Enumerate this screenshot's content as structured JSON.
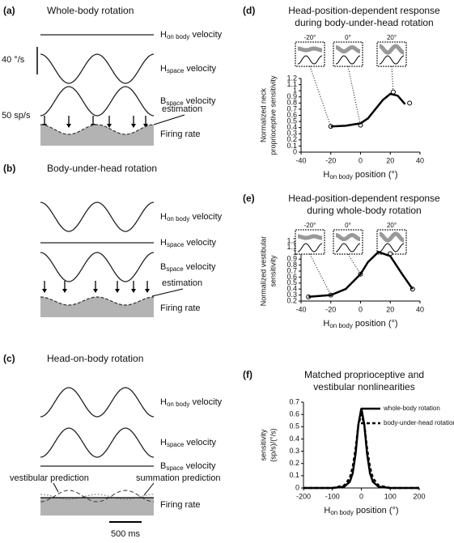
{
  "figure": {
    "panels": [
      {
        "letter": "(a)",
        "title": "Whole-body rotation",
        "traces": [
          {
            "main": "H",
            "sub": "on body",
            "rest": " velocity"
          },
          {
            "main": "H",
            "sub": "space",
            "rest": " velocity"
          },
          {
            "main": "B",
            "sub": "space",
            "rest": " velocity"
          }
        ],
        "scales": [
          "40 °/s",
          "50 sp/s"
        ],
        "annotations": [
          "estimation"
        ],
        "firing": "Firing rate"
      },
      {
        "letter": "(b)",
        "title": "Body-under-head rotation",
        "traces": [
          {
            "main": "H",
            "sub": "on body",
            "rest": " velocity"
          },
          {
            "main": "H",
            "sub": "space",
            "rest": " velocity"
          },
          {
            "main": "B",
            "sub": "space",
            "rest": " velocity"
          }
        ],
        "annotations": [
          "estimation"
        ],
        "firing": "Firing rate"
      },
      {
        "letter": "(c)",
        "title": "Head-on-body rotation",
        "traces": [
          {
            "main": "H",
            "sub": "on body",
            "rest": " velocity"
          },
          {
            "main": "H",
            "sub": "space",
            "rest": " velocity"
          },
          {
            "main": "B",
            "sub": "space",
            "rest": " velocity"
          }
        ],
        "annotations": [
          "vestibular prediction",
          "summation prediction"
        ],
        "firing": "Firing rate",
        "time_scale": "500 ms"
      }
    ]
  },
  "chart_data": [
    {
      "type": "line",
      "letter": "(d)",
      "title": [
        "Head-position-dependent response",
        "during body-under-head rotation"
      ],
      "ylabel": [
        "Normalized neck",
        "proprioceptive sensitivity"
      ],
      "xlabel": {
        "main": "H",
        "sub": "on body",
        "rest": " position (°)"
      },
      "xlim": [
        -40,
        40
      ],
      "xticks": [
        -40,
        -20,
        0,
        20,
        40
      ],
      "ylim": [
        0,
        1.2
      ],
      "yticks": [
        0,
        0.1,
        0.2,
        0.3,
        0.4,
        0.5,
        0.6,
        0.7,
        0.8,
        0.9,
        1,
        1.1,
        1.2
      ],
      "insets": [
        "-20°",
        "0°",
        "20°"
      ],
      "series": [
        {
          "type": "scatter",
          "color": "#000000",
          "x": [
            -20,
            0,
            22,
            33
          ],
          "values": [
            0.42,
            0.44,
            0.98,
            0.8
          ]
        },
        {
          "type": "line",
          "color": "#000000",
          "x": [
            -20,
            -10,
            0,
            5,
            10,
            15,
            20,
            25,
            30
          ],
          "values": [
            0.42,
            0.43,
            0.47,
            0.55,
            0.7,
            0.85,
            0.95,
            0.92,
            0.78
          ]
        }
      ]
    },
    {
      "type": "line",
      "letter": "(e)",
      "title": [
        "Head-position-dependent response",
        "during whole-body rotation"
      ],
      "ylabel": [
        "Normalized vestibular",
        "sensitivity"
      ],
      "xlabel": {
        "main": "H",
        "sub": "on body",
        "rest": " position (°)"
      },
      "xlim": [
        -40,
        40
      ],
      "xticks": [
        -40,
        -20,
        0,
        20,
        40
      ],
      "ylim": [
        0.2,
        1.2
      ],
      "yticks": [
        0.2,
        0.3,
        0.4,
        0.5,
        0.6,
        0.7,
        0.8,
        0.9,
        1,
        1.1,
        1.2
      ],
      "insets": [
        "-20°",
        "0°",
        "20°"
      ],
      "series": [
        {
          "type": "scatter",
          "color": "#000000",
          "x": [
            -20,
            0,
            20,
            -35,
            35
          ],
          "values": [
            0.3,
            0.65,
            0.99,
            0.27,
            0.4
          ]
        },
        {
          "type": "line",
          "color": "#000000",
          "x": [
            -35,
            -20,
            -10,
            0,
            5,
            12,
            20,
            28,
            35
          ],
          "values": [
            0.27,
            0.3,
            0.4,
            0.65,
            0.85,
            1.02,
            0.95,
            0.65,
            0.4
          ]
        }
      ]
    },
    {
      "type": "line",
      "letter": "(f)",
      "title": [
        "Matched proprioceptive and",
        "vestibular nonlinearities"
      ],
      "ylabel": [
        "sensitivity",
        "(sp/s)/(°/s)"
      ],
      "xlabel": {
        "main": "H",
        "sub": "on body",
        "rest": " position (°)"
      },
      "xlim": [
        -200,
        200
      ],
      "xticks": [
        -200,
        -100,
        0,
        100,
        200
      ],
      "ylim": [
        0,
        0.7
      ],
      "yticks": [
        0,
        0.1,
        0.2,
        0.3,
        0.4,
        0.5,
        0.6,
        0.7
      ],
      "series": [
        {
          "type": "line",
          "name": "whole-body rotation",
          "color": "#000000",
          "dash": false,
          "x": [
            -200,
            -100,
            -60,
            -40,
            -30,
            -20,
            -10,
            0,
            10,
            20,
            30,
            40,
            60,
            100,
            200
          ],
          "values": [
            0,
            0,
            0.01,
            0.05,
            0.12,
            0.28,
            0.52,
            0.65,
            0.52,
            0.28,
            0.12,
            0.05,
            0.01,
            0,
            0
          ]
        },
        {
          "type": "line",
          "name": "body-under-head rotation",
          "color": "#000000",
          "dash": true,
          "x": [
            -200,
            -100,
            -60,
            -40,
            -30,
            -20,
            -10,
            0,
            10,
            20,
            30,
            40,
            60,
            100,
            200
          ],
          "values": [
            0,
            0,
            0.02,
            0.08,
            0.17,
            0.32,
            0.52,
            0.6,
            0.52,
            0.32,
            0.17,
            0.08,
            0.02,
            0,
            0
          ]
        }
      ]
    }
  ]
}
